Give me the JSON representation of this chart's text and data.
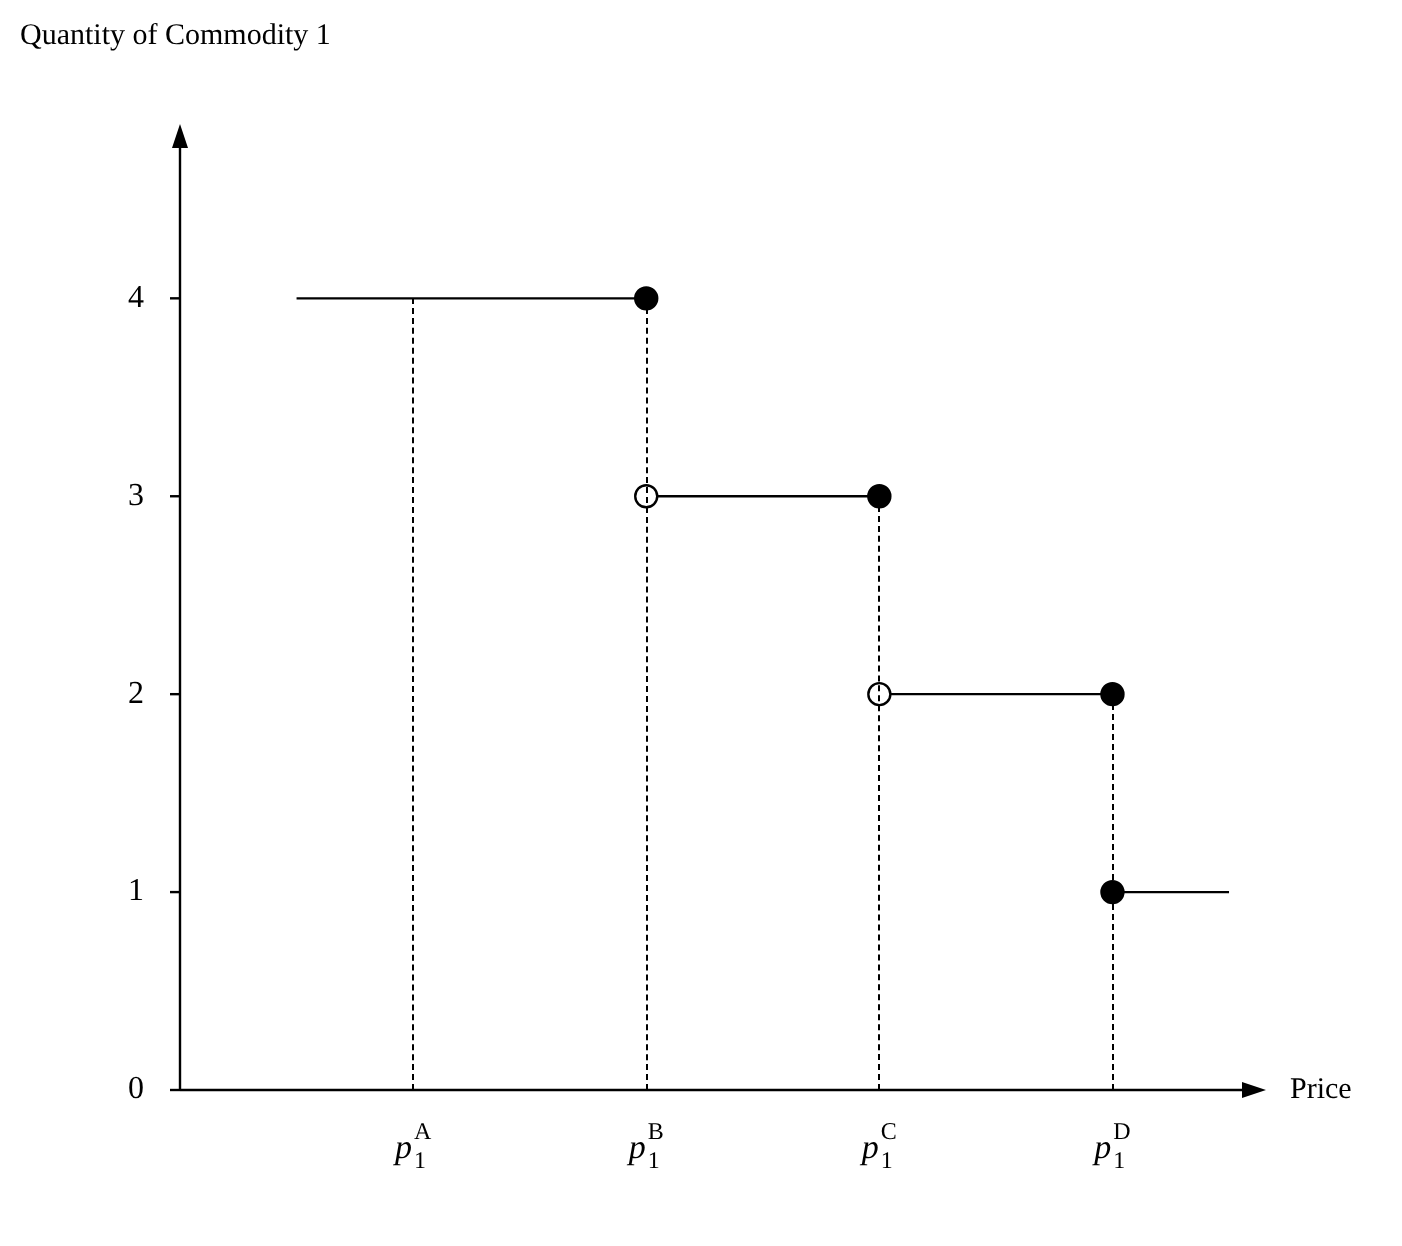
{
  "chart_data": {
    "type": "line",
    "xlabel": "Price",
    "ylabel": "Quantity of Commodity 1",
    "categories": [
      null,
      null,
      "p$_{1}$$^{A}$",
      null,
      "p$_{1}$$^{B}$",
      null,
      "p$_{1}$$^{C}$",
      null,
      "p$_{1}$$^{D}$",
      null
    ],
    "ylim": [
      0,
      4.8
    ],
    "yticks": [
      0,
      1,
      2,
      3,
      4
    ],
    "grid": false,
    "legend": false,
    "series": [
      {
        "color": "#000000",
        "line_style": "solid",
        "marker": "none",
        "values": [
          null,
          4,
          4,
          4,
          4,
          null,
          null,
          null,
          null,
          null
        ]
      },
      {
        "color": "#000000",
        "line_style": "solid",
        "marker": "none",
        "values": [
          null,
          null,
          null,
          null,
          3,
          3,
          3,
          null,
          null,
          null
        ]
      },
      {
        "color": "#000000",
        "line_style": "solid",
        "marker": "none",
        "values": [
          null,
          null,
          null,
          null,
          null,
          null,
          2,
          2,
          2,
          null
        ]
      },
      {
        "color": "#000000",
        "line_style": "solid",
        "marker": "none",
        "values": [
          null,
          null,
          null,
          null,
          null,
          null,
          null,
          null,
          1,
          1
        ]
      },
      {
        "type": "scatter",
        "color": "#000000",
        "marker": "circle",
        "values": [
          null,
          null,
          null,
          null,
          4,
          null,
          3,
          null,
          2,
          null
        ]
      },
      {
        "type": "scatter",
        "color": "#000000",
        "marker": "circle",
        "values": [
          null,
          null,
          null,
          null,
          null,
          null,
          null,
          null,
          1,
          null
        ]
      },
      {
        "type": "scatter",
        "color": "#ffffff",
        "marker": "circle",
        "values": [
          null,
          null,
          null,
          null,
          3,
          null,
          2,
          null,
          null,
          null
        ]
      }
    ]
  }
}
